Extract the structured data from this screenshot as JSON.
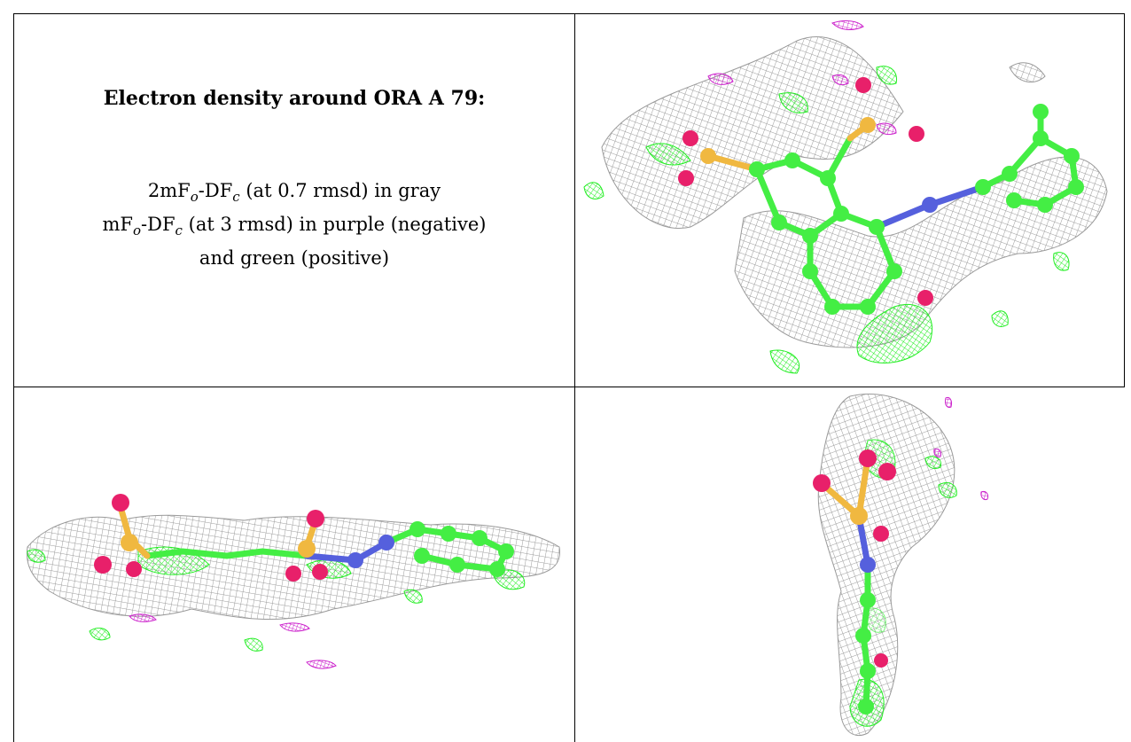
{
  "caption": {
    "title": "Electron density around ORA A 79:",
    "line1": {
      "prefix": "2mF",
      "s1": "o",
      "mid": "-DF",
      "s2": "c",
      "suffix": " (at 0.7 rmsd) in gray"
    },
    "line2": {
      "prefix": "mF",
      "s1": "o",
      "mid": "-DF",
      "s2": "c",
      "suffix": " (at 3 rmsd) in purple (negative)"
    },
    "line3": "and green (positive)"
  },
  "colors": {
    "mesh_2fofc": "#9a9a9a",
    "mesh_positive": "#22ee22",
    "mesh_negative": "#cc22cc",
    "carbon": "#44ee44",
    "oxygen": "#e8206a",
    "sulfur": "#f0b840",
    "nitrogen": "#5560dd"
  },
  "panels": [
    {
      "view": "top"
    },
    {
      "view": "side"
    },
    {
      "view": "end-on"
    }
  ]
}
